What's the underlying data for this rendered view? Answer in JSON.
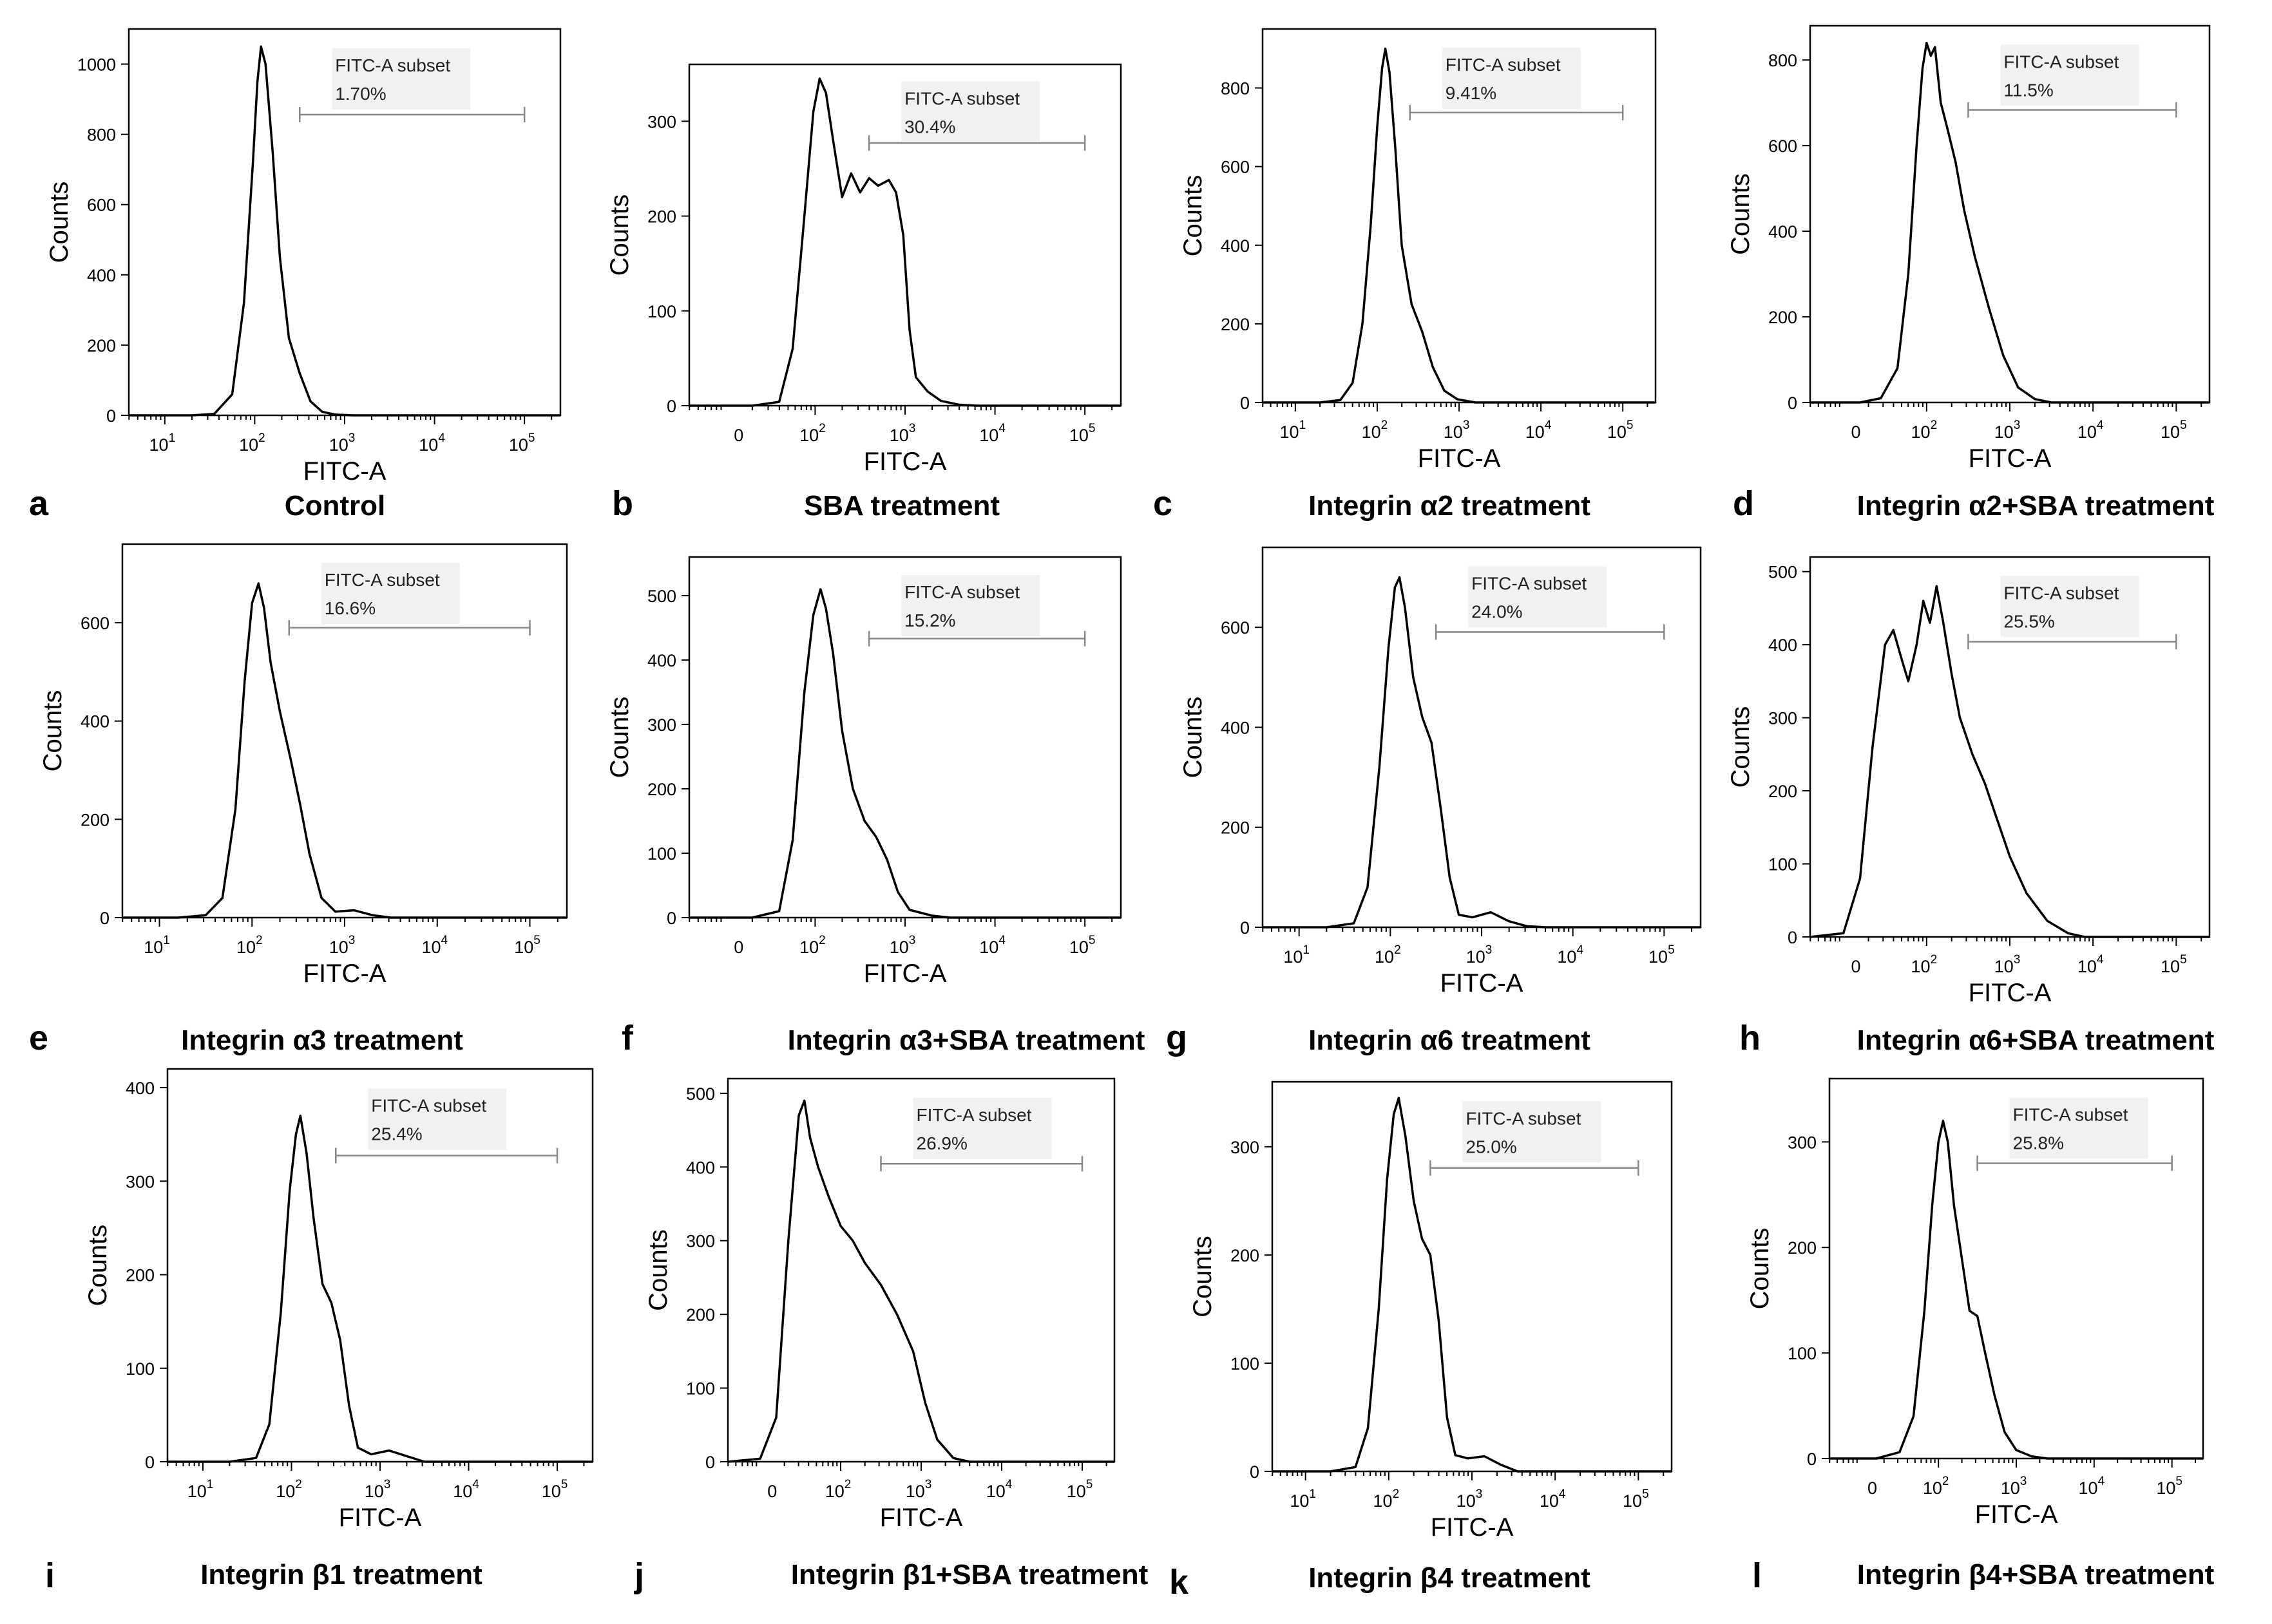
{
  "chart_data": [
    {
      "type": "histogram",
      "letter": "a",
      "caption": "Control",
      "xlabel": "FITC-A",
      "ylabel": "Counts",
      "gate_title": "FITC-A subset",
      "gate_value": "1.70%",
      "gate_range": [
        2.5,
        5
      ],
      "xrange": [
        0.6,
        5.4
      ],
      "xticks": [
        1,
        2,
        3,
        4,
        5
      ],
      "has_zero_tick": false,
      "yrange": [
        0,
        1100
      ],
      "yticks": [
        0,
        200,
        400,
        600,
        800,
        1000
      ],
      "points": [
        [
          0.6,
          0
        ],
        [
          1.3,
          0
        ],
        [
          1.55,
          4
        ],
        [
          1.75,
          60
        ],
        [
          1.88,
          320
        ],
        [
          1.98,
          720
        ],
        [
          2.03,
          950
        ],
        [
          2.07,
          1050
        ],
        [
          2.12,
          1000
        ],
        [
          2.2,
          750
        ],
        [
          2.28,
          450
        ],
        [
          2.38,
          220
        ],
        [
          2.5,
          120
        ],
        [
          2.62,
          40
        ],
        [
          2.75,
          10
        ],
        [
          2.9,
          2
        ],
        [
          3.1,
          0
        ],
        [
          5.4,
          0
        ]
      ]
    },
    {
      "type": "histogram",
      "letter": "b",
      "caption": "SBA treatment",
      "xlabel": "FITC-A",
      "ylabel": "Counts",
      "gate_title": "FITC-A subset",
      "gate_value": "30.4%",
      "gate_range": [
        2.6,
        5
      ],
      "xrange": [
        0.6,
        5.4
      ],
      "xticks": [
        2,
        3,
        4,
        5
      ],
      "has_zero_tick": true,
      "yrange": [
        0,
        360
      ],
      "yticks": [
        0,
        100,
        200,
        300
      ],
      "points": [
        [
          0.6,
          0
        ],
        [
          1.3,
          0
        ],
        [
          1.6,
          4
        ],
        [
          1.75,
          60
        ],
        [
          1.88,
          200
        ],
        [
          1.98,
          310
        ],
        [
          2.05,
          345
        ],
        [
          2.12,
          330
        ],
        [
          2.2,
          280
        ],
        [
          2.3,
          220
        ],
        [
          2.4,
          245
        ],
        [
          2.5,
          225
        ],
        [
          2.6,
          240
        ],
        [
          2.7,
          232
        ],
        [
          2.82,
          238
        ],
        [
          2.9,
          225
        ],
        [
          2.98,
          180
        ],
        [
          3.05,
          80
        ],
        [
          3.12,
          30
        ],
        [
          3.25,
          15
        ],
        [
          3.4,
          5
        ],
        [
          3.6,
          1
        ],
        [
          3.8,
          0
        ],
        [
          5.4,
          0
        ]
      ]
    },
    {
      "type": "histogram",
      "letter": "c",
      "caption": "Integrin α2 treatment",
      "xlabel": "FITC-A",
      "ylabel": "Counts",
      "gate_title": "FITC-A subset",
      "gate_value": "9.41%",
      "gate_range": [
        2.4,
        5
      ],
      "xrange": [
        0.6,
        5.4
      ],
      "xticks": [
        1,
        2,
        3,
        4,
        5
      ],
      "has_zero_tick": false,
      "yrange": [
        0,
        950
      ],
      "yticks": [
        0,
        200,
        400,
        600,
        800
      ],
      "points": [
        [
          0.6,
          0
        ],
        [
          1.3,
          0
        ],
        [
          1.55,
          6
        ],
        [
          1.7,
          50
        ],
        [
          1.82,
          200
        ],
        [
          1.92,
          450
        ],
        [
          2.0,
          700
        ],
        [
          2.06,
          850
        ],
        [
          2.1,
          900
        ],
        [
          2.15,
          840
        ],
        [
          2.22,
          650
        ],
        [
          2.3,
          400
        ],
        [
          2.42,
          250
        ],
        [
          2.55,
          180
        ],
        [
          2.68,
          90
        ],
        [
          2.82,
          30
        ],
        [
          2.98,
          8
        ],
        [
          3.2,
          0
        ],
        [
          5.4,
          0
        ]
      ]
    },
    {
      "type": "histogram",
      "letter": "d",
      "caption": "Integrin α2+SBA treatment",
      "xlabel": "FITC-A",
      "ylabel": "Counts",
      "gate_title": "FITC-A subset",
      "gate_value": "11.5%",
      "gate_range": [
        2.5,
        5
      ],
      "xrange": [
        0.6,
        5.4
      ],
      "xticks": [
        2,
        3,
        4,
        5
      ],
      "has_zero_tick": true,
      "yrange": [
        0,
        880
      ],
      "yticks": [
        0,
        200,
        400,
        600,
        800
      ],
      "points": [
        [
          0.6,
          0
        ],
        [
          1.2,
          0
        ],
        [
          1.45,
          10
        ],
        [
          1.65,
          80
        ],
        [
          1.78,
          300
        ],
        [
          1.88,
          600
        ],
        [
          1.95,
          780
        ],
        [
          2.0,
          840
        ],
        [
          2.05,
          810
        ],
        [
          2.1,
          830
        ],
        [
          2.17,
          700
        ],
        [
          2.25,
          640
        ],
        [
          2.35,
          560
        ],
        [
          2.45,
          450
        ],
        [
          2.58,
          340
        ],
        [
          2.75,
          220
        ],
        [
          2.92,
          110
        ],
        [
          3.1,
          35
        ],
        [
          3.3,
          8
        ],
        [
          3.5,
          0
        ],
        [
          5.4,
          0
        ]
      ]
    },
    {
      "type": "histogram",
      "letter": "e",
      "caption": "Integrin α3 treatment",
      "xlabel": "FITC-A",
      "ylabel": "Counts",
      "gate_title": "FITC-A subset",
      "gate_value": "16.6%",
      "gate_range": [
        2.4,
        5
      ],
      "xrange": [
        0.6,
        5.4
      ],
      "xticks": [
        1,
        2,
        3,
        4,
        5
      ],
      "has_zero_tick": false,
      "yrange": [
        0,
        760
      ],
      "yticks": [
        0,
        200,
        400,
        600
      ],
      "points": [
        [
          0.6,
          0
        ],
        [
          1.2,
          0
        ],
        [
          1.5,
          5
        ],
        [
          1.68,
          40
        ],
        [
          1.82,
          220
        ],
        [
          1.92,
          480
        ],
        [
          2.0,
          640
        ],
        [
          2.07,
          680
        ],
        [
          2.13,
          630
        ],
        [
          2.2,
          520
        ],
        [
          2.3,
          420
        ],
        [
          2.42,
          320
        ],
        [
          2.52,
          230
        ],
        [
          2.62,
          130
        ],
        [
          2.75,
          40
        ],
        [
          2.9,
          12
        ],
        [
          3.1,
          15
        ],
        [
          3.3,
          5
        ],
        [
          3.5,
          0
        ],
        [
          5.4,
          0
        ]
      ]
    },
    {
      "type": "histogram",
      "letter": "f",
      "caption": "Integrin α3+SBA treatment",
      "xlabel": "FITC-A",
      "ylabel": "Counts",
      "gate_title": "FITC-A subset",
      "gate_value": "15.2%",
      "gate_range": [
        2.6,
        5
      ],
      "xrange": [
        0.6,
        5.4
      ],
      "xticks": [
        2,
        3,
        4,
        5
      ],
      "has_zero_tick": true,
      "yrange": [
        0,
        560
      ],
      "yticks": [
        0,
        100,
        200,
        300,
        400,
        500
      ],
      "points": [
        [
          0.6,
          0
        ],
        [
          1.3,
          0
        ],
        [
          1.6,
          10
        ],
        [
          1.75,
          120
        ],
        [
          1.88,
          350
        ],
        [
          1.98,
          470
        ],
        [
          2.06,
          510
        ],
        [
          2.12,
          480
        ],
        [
          2.2,
          410
        ],
        [
          2.3,
          290
        ],
        [
          2.42,
          200
        ],
        [
          2.55,
          150
        ],
        [
          2.68,
          125
        ],
        [
          2.8,
          90
        ],
        [
          2.92,
          40
        ],
        [
          3.05,
          12
        ],
        [
          3.3,
          3
        ],
        [
          3.5,
          0
        ],
        [
          5.4,
          0
        ]
      ]
    },
    {
      "type": "histogram",
      "letter": "g",
      "caption": "Integrin α6 treatment",
      "xlabel": "FITC-A",
      "ylabel": "Counts",
      "gate_title": "FITC-A subset",
      "gate_value": "24.0%",
      "gate_range": [
        2.5,
        5
      ],
      "xrange": [
        0.6,
        5.4
      ],
      "xticks": [
        1,
        2,
        3,
        4,
        5
      ],
      "has_zero_tick": false,
      "yrange": [
        0,
        760
      ],
      "yticks": [
        0,
        200,
        400,
        600
      ],
      "points": [
        [
          0.6,
          0
        ],
        [
          1.3,
          0
        ],
        [
          1.6,
          8
        ],
        [
          1.75,
          80
        ],
        [
          1.88,
          320
        ],
        [
          1.98,
          560
        ],
        [
          2.05,
          680
        ],
        [
          2.1,
          700
        ],
        [
          2.16,
          640
        ],
        [
          2.25,
          500
        ],
        [
          2.35,
          420
        ],
        [
          2.45,
          370
        ],
        [
          2.55,
          240
        ],
        [
          2.65,
          100
        ],
        [
          2.75,
          25
        ],
        [
          2.9,
          20
        ],
        [
          3.1,
          30
        ],
        [
          3.3,
          12
        ],
        [
          3.5,
          2
        ],
        [
          3.7,
          0
        ],
        [
          5.4,
          0
        ]
      ]
    },
    {
      "type": "histogram",
      "letter": "h",
      "caption": "Integrin α6+SBA treatment",
      "xlabel": "FITC-A",
      "ylabel": "Counts",
      "gate_title": "FITC-A subset",
      "gate_value": "25.5%",
      "gate_range": [
        2.5,
        5
      ],
      "xrange": [
        0.6,
        5.4
      ],
      "xticks": [
        2,
        3,
        4,
        5
      ],
      "has_zero_tick": true,
      "yrange": [
        0,
        520
      ],
      "yticks": [
        0,
        100,
        200,
        300,
        400,
        500
      ],
      "points": [
        [
          0.6,
          0
        ],
        [
          1.0,
          5
        ],
        [
          1.2,
          80
        ],
        [
          1.35,
          260
        ],
        [
          1.5,
          400
        ],
        [
          1.6,
          420
        ],
        [
          1.7,
          380
        ],
        [
          1.78,
          350
        ],
        [
          1.88,
          400
        ],
        [
          1.96,
          460
        ],
        [
          2.04,
          430
        ],
        [
          2.12,
          480
        ],
        [
          2.2,
          430
        ],
        [
          2.3,
          360
        ],
        [
          2.4,
          300
        ],
        [
          2.55,
          250
        ],
        [
          2.7,
          210
        ],
        [
          2.85,
          160
        ],
        [
          3.0,
          110
        ],
        [
          3.2,
          60
        ],
        [
          3.45,
          22
        ],
        [
          3.7,
          5
        ],
        [
          3.9,
          0
        ],
        [
          5.4,
          0
        ]
      ]
    },
    {
      "type": "histogram",
      "letter": "i",
      "caption": "Integrin β1 treatment",
      "xlabel": "FITC-A",
      "ylabel": "Counts",
      "gate_title": "FITC-A subset",
      "gate_value": "25.4%",
      "gate_range": [
        2.5,
        5
      ],
      "xrange": [
        0.6,
        5.4
      ],
      "xticks": [
        1,
        2,
        3,
        4,
        5
      ],
      "has_zero_tick": false,
      "yrange": [
        0,
        420
      ],
      "yticks": [
        0,
        100,
        200,
        300,
        400
      ],
      "points": [
        [
          0.6,
          0
        ],
        [
          1.3,
          0
        ],
        [
          1.6,
          4
        ],
        [
          1.75,
          40
        ],
        [
          1.88,
          160
        ],
        [
          1.98,
          290
        ],
        [
          2.05,
          350
        ],
        [
          2.1,
          370
        ],
        [
          2.17,
          330
        ],
        [
          2.25,
          260
        ],
        [
          2.35,
          190
        ],
        [
          2.45,
          170
        ],
        [
          2.55,
          130
        ],
        [
          2.65,
          60
        ],
        [
          2.75,
          15
        ],
        [
          2.9,
          8
        ],
        [
          3.1,
          12
        ],
        [
          3.3,
          6
        ],
        [
          3.5,
          0
        ],
        [
          5.4,
          0
        ]
      ]
    },
    {
      "type": "histogram",
      "letter": "j",
      "caption": "Integrin β1+SBA treatment",
      "xlabel": "FITC-A",
      "ylabel": "Counts",
      "gate_title": "FITC-A subset",
      "gate_value": "26.9%",
      "gate_range": [
        2.5,
        5
      ],
      "xrange": [
        0.6,
        5.4
      ],
      "xticks": [
        2,
        3,
        4,
        5
      ],
      "has_zero_tick": true,
      "yrange": [
        0,
        520
      ],
      "yticks": [
        0,
        100,
        200,
        300,
        400,
        500
      ],
      "points": [
        [
          0.6,
          0
        ],
        [
          1.0,
          4
        ],
        [
          1.2,
          60
        ],
        [
          1.35,
          300
        ],
        [
          1.48,
          470
        ],
        [
          1.55,
          490
        ],
        [
          1.62,
          440
        ],
        [
          1.72,
          400
        ],
        [
          1.85,
          360
        ],
        [
          2.0,
          320
        ],
        [
          2.15,
          300
        ],
        [
          2.3,
          270
        ],
        [
          2.5,
          240
        ],
        [
          2.7,
          200
        ],
        [
          2.9,
          150
        ],
        [
          3.05,
          80
        ],
        [
          3.2,
          30
        ],
        [
          3.4,
          5
        ],
        [
          3.6,
          0
        ],
        [
          5.4,
          0
        ]
      ]
    },
    {
      "type": "histogram",
      "letter": "k",
      "caption": "Integrin β4 treatment",
      "xlabel": "FITC-A",
      "ylabel": "Counts",
      "gate_title": "FITC-A subset",
      "gate_value": "25.0%",
      "gate_range": [
        2.5,
        5
      ],
      "xrange": [
        0.6,
        5.4
      ],
      "xticks": [
        1,
        2,
        3,
        4,
        5
      ],
      "has_zero_tick": false,
      "yrange": [
        0,
        360
      ],
      "yticks": [
        0,
        100,
        200,
        300
      ],
      "points": [
        [
          0.6,
          0
        ],
        [
          1.3,
          0
        ],
        [
          1.6,
          4
        ],
        [
          1.75,
          40
        ],
        [
          1.88,
          150
        ],
        [
          1.98,
          270
        ],
        [
          2.06,
          330
        ],
        [
          2.12,
          345
        ],
        [
          2.2,
          310
        ],
        [
          2.3,
          250
        ],
        [
          2.4,
          215
        ],
        [
          2.5,
          200
        ],
        [
          2.6,
          140
        ],
        [
          2.7,
          50
        ],
        [
          2.8,
          15
        ],
        [
          2.95,
          12
        ],
        [
          3.15,
          14
        ],
        [
          3.35,
          6
        ],
        [
          3.55,
          0
        ],
        [
          5.4,
          0
        ]
      ]
    },
    {
      "type": "histogram",
      "letter": "l",
      "caption": "Integrin β4+SBA treatment",
      "xlabel": "FITC-A",
      "ylabel": "Counts",
      "gate_title": "FITC-A subset",
      "gate_value": "25.8%",
      "gate_range": [
        2.5,
        5
      ],
      "xrange": [
        0.6,
        5.4
      ],
      "xticks": [
        2,
        3,
        4,
        5
      ],
      "has_zero_tick": true,
      "yrange": [
        0,
        360
      ],
      "yticks": [
        0,
        100,
        200,
        300
      ],
      "points": [
        [
          0.6,
          0
        ],
        [
          1.2,
          0
        ],
        [
          1.5,
          6
        ],
        [
          1.68,
          40
        ],
        [
          1.82,
          140
        ],
        [
          1.92,
          240
        ],
        [
          2.0,
          300
        ],
        [
          2.06,
          320
        ],
        [
          2.12,
          300
        ],
        [
          2.2,
          240
        ],
        [
          2.3,
          190
        ],
        [
          2.4,
          140
        ],
        [
          2.5,
          135
        ],
        [
          2.6,
          100
        ],
        [
          2.72,
          60
        ],
        [
          2.85,
          25
        ],
        [
          3.0,
          8
        ],
        [
          3.2,
          2
        ],
        [
          3.4,
          0
        ],
        [
          5.4,
          0
        ]
      ]
    }
  ]
}
